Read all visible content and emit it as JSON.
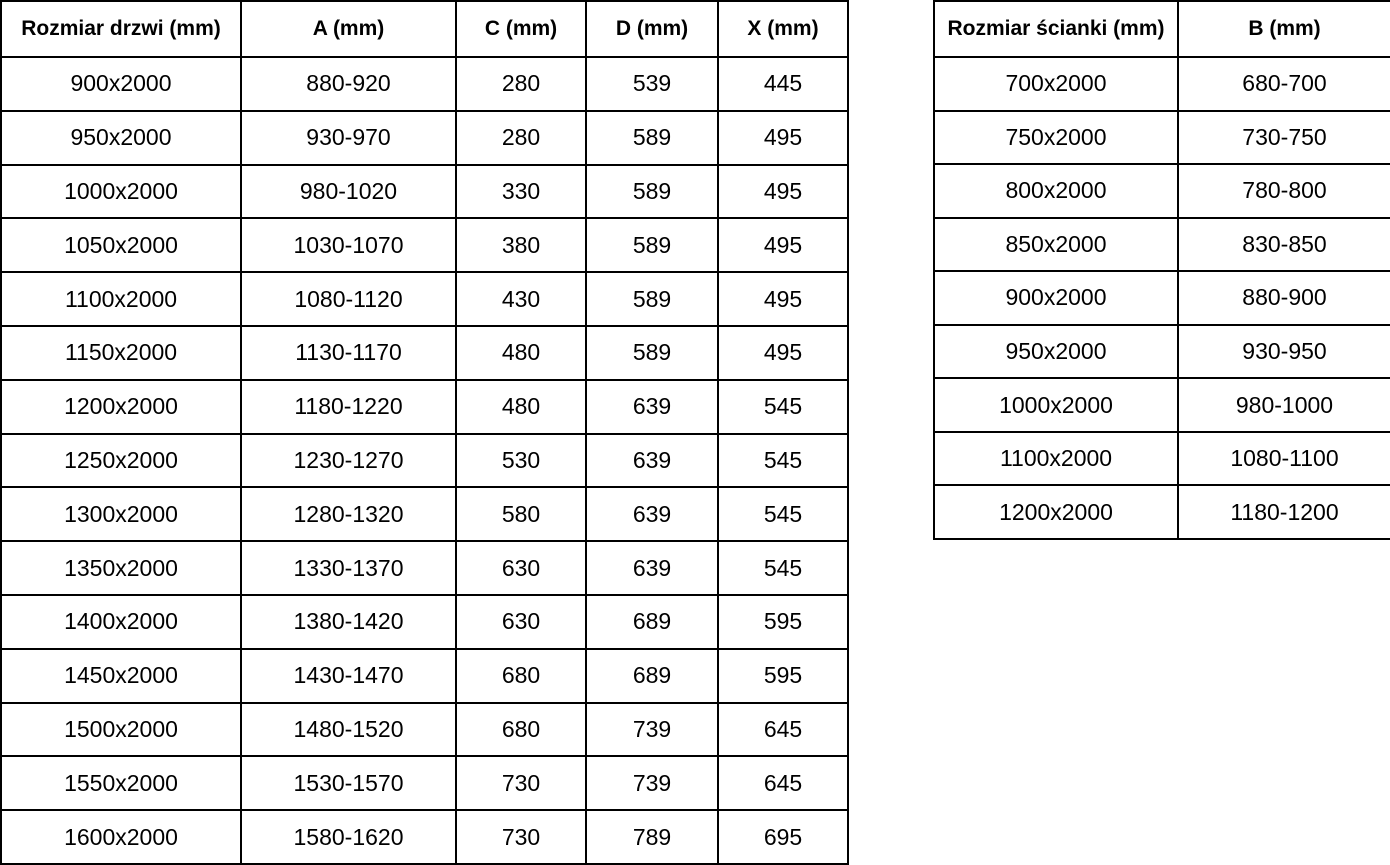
{
  "colors": {
    "border": "#000000",
    "text": "#000000",
    "background": "#ffffff"
  },
  "door_table": {
    "headers": [
      "Rozmiar drzwi (mm)",
      "A (mm)",
      "C (mm)",
      "D (mm)",
      "X (mm)"
    ],
    "rows": [
      [
        "900x2000",
        "880-920",
        "280",
        "539",
        "445"
      ],
      [
        "950x2000",
        "930-970",
        "280",
        "589",
        "495"
      ],
      [
        "1000x2000",
        "980-1020",
        "330",
        "589",
        "495"
      ],
      [
        "1050x2000",
        "1030-1070",
        "380",
        "589",
        "495"
      ],
      [
        "1100x2000",
        "1080-1120",
        "430",
        "589",
        "495"
      ],
      [
        "1150x2000",
        "1130-1170",
        "480",
        "589",
        "495"
      ],
      [
        "1200x2000",
        "1180-1220",
        "480",
        "639",
        "545"
      ],
      [
        "1250x2000",
        "1230-1270",
        "530",
        "639",
        "545"
      ],
      [
        "1300x2000",
        "1280-1320",
        "580",
        "639",
        "545"
      ],
      [
        "1350x2000",
        "1330-1370",
        "630",
        "639",
        "545"
      ],
      [
        "1400x2000",
        "1380-1420",
        "630",
        "689",
        "595"
      ],
      [
        "1450x2000",
        "1430-1470",
        "680",
        "689",
        "595"
      ],
      [
        "1500x2000",
        "1480-1520",
        "680",
        "739",
        "645"
      ],
      [
        "1550x2000",
        "1530-1570",
        "730",
        "739",
        "645"
      ],
      [
        "1600x2000",
        "1580-1620",
        "730",
        "789",
        "695"
      ]
    ]
  },
  "wall_table": {
    "headers": [
      "Rozmiar ścianki (mm)",
      "B (mm)"
    ],
    "rows": [
      [
        "700x2000",
        "680-700"
      ],
      [
        "750x2000",
        "730-750"
      ],
      [
        "800x2000",
        "780-800"
      ],
      [
        "850x2000",
        "830-850"
      ],
      [
        "900x2000",
        "880-900"
      ],
      [
        "950x2000",
        "930-950"
      ],
      [
        "1000x2000",
        "980-1000"
      ],
      [
        "1100x2000",
        "1080-1100"
      ],
      [
        "1200x2000",
        "1180-1200"
      ]
    ]
  }
}
